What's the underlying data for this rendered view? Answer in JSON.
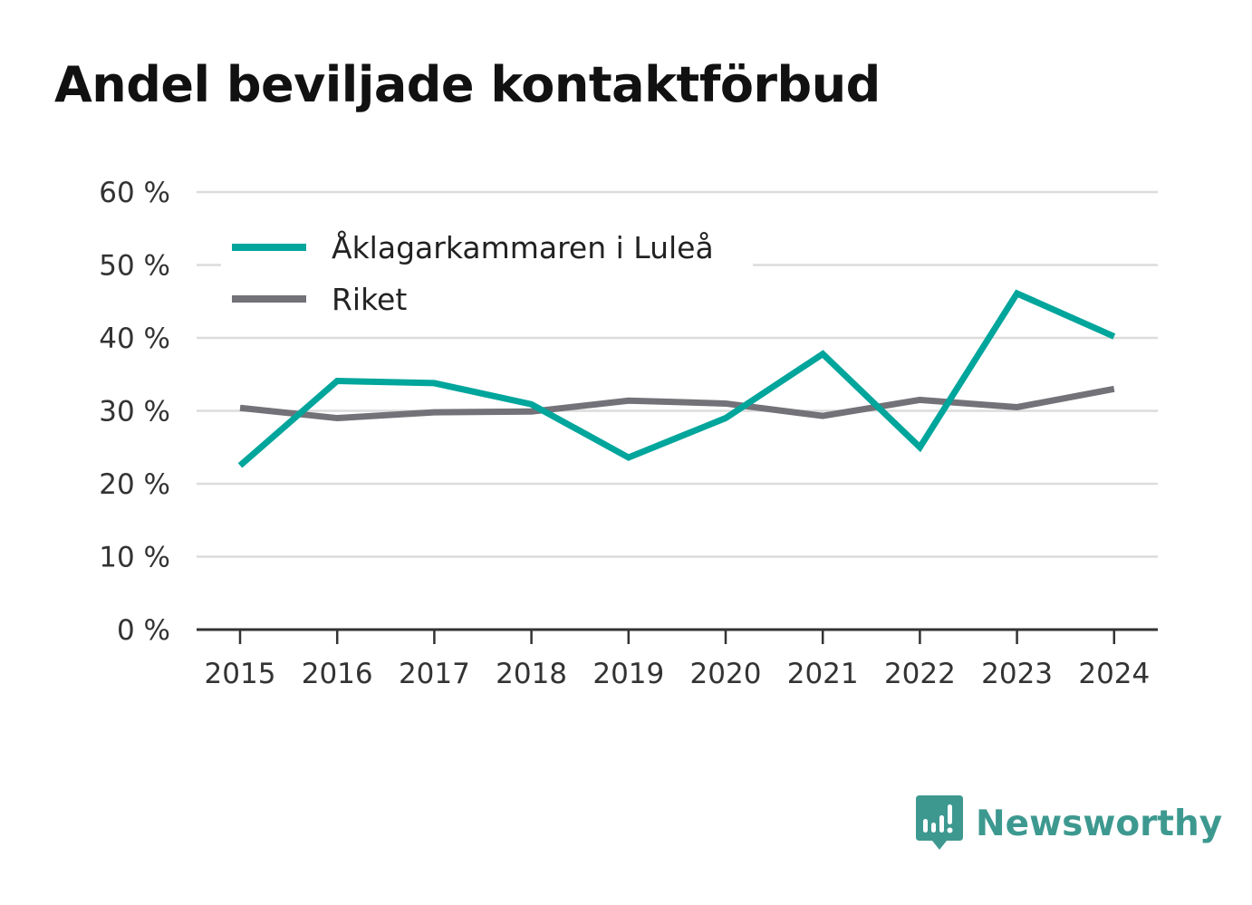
{
  "title": "Andel beviljade kontaktförbud",
  "brand": {
    "name": "Newsworthy",
    "color": "#3d9990"
  },
  "chart_data": {
    "type": "line",
    "x": [
      "2015",
      "2016",
      "2017",
      "2018",
      "2019",
      "2020",
      "2021",
      "2022",
      "2023",
      "2024"
    ],
    "series": [
      {
        "name": "Åklagarkammaren i Luleå",
        "color": "#00a59b",
        "values": [
          22.5,
          34.1,
          33.8,
          30.9,
          23.6,
          29.0,
          37.8,
          25.0,
          46.1,
          40.2
        ]
      },
      {
        "name": "Riket",
        "color": "#737278",
        "values": [
          30.4,
          29.0,
          29.8,
          29.9,
          31.4,
          31.0,
          29.3,
          31.5,
          30.5,
          33.0
        ]
      }
    ],
    "y_ticks": [
      0,
      10,
      20,
      30,
      40,
      50,
      60
    ],
    "y_tick_labels": [
      "0 %",
      "10 %",
      "20 %",
      "30 %",
      "40 %",
      "50 %",
      "60 %"
    ],
    "ylim": [
      0,
      60
    ],
    "grid": true,
    "legend": "top-left"
  }
}
